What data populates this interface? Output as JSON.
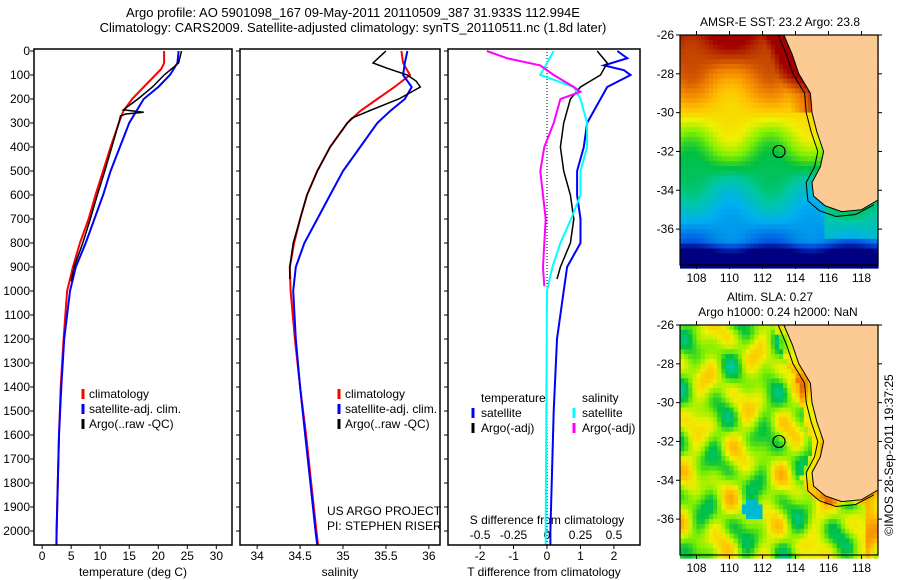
{
  "header": {
    "line1": "Argo profile: AO 5901098_167 09-May-2011 20110509_387 31.933S 112.994E",
    "line2": "Climatology: CARS2009. Satellite-adjusted climatology: synTS_20110511.nc (1.8d later)"
  },
  "depth_axis": {
    "ylim": [
      0,
      2060
    ],
    "ticks": [
      "0",
      "100",
      "200",
      "300",
      "400",
      "500",
      "600",
      "700",
      "800",
      "900",
      "1000",
      "1100",
      "1200",
      "1300",
      "1400",
      "1500",
      "1600",
      "1700",
      "1800",
      "1900",
      "2000"
    ]
  },
  "chart_data": [
    {
      "type": "line",
      "id": "temperature",
      "xlabel": "temperature (deg C)",
      "xlim": [
        -1.4,
        32.7
      ],
      "xticks": [
        "0",
        "5",
        "10",
        "15",
        "20",
        "25",
        "30"
      ],
      "legend": [
        "climatology",
        "satellite-adj. clim.",
        "Argo(..raw -QC)"
      ],
      "series": [
        {
          "name": "climatology",
          "color": "#ff0000",
          "points": [
            [
              0,
              21
            ],
            [
              50,
              21
            ],
            [
              75,
              20.5
            ],
            [
              100,
              19.5
            ],
            [
              150,
              17.5
            ],
            [
              200,
              15.5
            ],
            [
              250,
              14
            ],
            [
              300,
              13.2
            ],
            [
              400,
              11.8
            ],
            [
              500,
              10.5
            ],
            [
              600,
              9.2
            ],
            [
              700,
              8
            ],
            [
              800,
              6.5
            ],
            [
              900,
              5.3
            ],
            [
              1000,
              4.3
            ],
            [
              1200,
              3.7
            ],
            [
              1400,
              3.2
            ],
            [
              1600,
              2.9
            ],
            [
              1800,
              2.7
            ],
            [
              2000,
              2.5
            ],
            [
              2060,
              2.45
            ]
          ]
        },
        {
          "name": "satellite-adj. clim.",
          "color": "#0000ff",
          "points": [
            [
              0,
              23.5
            ],
            [
              50,
              23.3
            ],
            [
              100,
              22
            ],
            [
              150,
              20
            ],
            [
              200,
              17.5
            ],
            [
              300,
              15
            ],
            [
              400,
              13.4
            ],
            [
              500,
              11.8
            ],
            [
              600,
              10.5
            ],
            [
              700,
              9
            ],
            [
              800,
              7.5
            ],
            [
              900,
              5.8
            ],
            [
              1000,
              4.8
            ],
            [
              1200,
              3.8
            ],
            [
              1400,
              3.3
            ],
            [
              1600,
              2.9
            ],
            [
              1800,
              2.7
            ],
            [
              2000,
              2.5
            ],
            [
              2060,
              2.45
            ]
          ]
        },
        {
          "name": "Argo(..raw -QC)",
          "color": "#000000",
          "points": [
            [
              0,
              24
            ],
            [
              50,
              23.5
            ],
            [
              100,
              21
            ],
            [
              150,
              19
            ],
            [
              200,
              16.5
            ],
            [
              245,
              14
            ],
            [
              255,
              17.5
            ],
            [
              262,
              14.5
            ],
            [
              270,
              13.5
            ],
            [
              300,
              13.2
            ],
            [
              400,
              12
            ],
            [
              500,
              10.8
            ],
            [
              600,
              9.5
            ],
            [
              700,
              8.3
            ],
            [
              800,
              7
            ],
            [
              900,
              5.5
            ],
            [
              960,
              5.0
            ]
          ]
        }
      ]
    },
    {
      "type": "line",
      "id": "salinity",
      "xlabel": "salinity",
      "xlim": [
        33.8,
        36.13
      ],
      "xticks": [
        "34",
        "34.5",
        "35",
        "35.5",
        "36"
      ],
      "legend": [
        "climatology",
        "satellite-adj. clim.",
        "Argo(..raw -QC)"
      ],
      "annotation": [
        "US ARGO PROJECT",
        "PI: STEPHEN RISER"
      ],
      "series": [
        {
          "name": "climatology",
          "color": "#ff0000",
          "points": [
            [
              0,
              35.68
            ],
            [
              50,
              35.7
            ],
            [
              100,
              35.78
            ],
            [
              150,
              35.6
            ],
            [
              200,
              35.4
            ],
            [
              250,
              35.2
            ],
            [
              300,
              35.05
            ],
            [
              400,
              34.85
            ],
            [
              500,
              34.7
            ],
            [
              600,
              34.58
            ],
            [
              700,
              34.5
            ],
            [
              800,
              34.43
            ],
            [
              900,
              34.38
            ],
            [
              1000,
              34.39
            ],
            [
              1200,
              34.44
            ],
            [
              1400,
              34.5
            ],
            [
              1600,
              34.57
            ],
            [
              1800,
              34.63
            ],
            [
              2000,
              34.69
            ],
            [
              2060,
              34.71
            ]
          ]
        },
        {
          "name": "satellite-adj. clim.",
          "color": "#0000ff",
          "points": [
            [
              0,
              35.75
            ],
            [
              50,
              35.72
            ],
            [
              100,
              35.7
            ],
            [
              150,
              35.8
            ],
            [
              200,
              35.72
            ],
            [
              250,
              35.55
            ],
            [
              300,
              35.4
            ],
            [
              400,
              35.2
            ],
            [
              500,
              35.0
            ],
            [
              600,
              34.85
            ],
            [
              700,
              34.7
            ],
            [
              800,
              34.55
            ],
            [
              900,
              34.45
            ],
            [
              1000,
              34.42
            ],
            [
              1200,
              34.45
            ],
            [
              1400,
              34.5
            ],
            [
              1600,
              34.56
            ],
            [
              1800,
              34.62
            ],
            [
              2000,
              34.68
            ],
            [
              2060,
              34.7
            ]
          ]
        },
        {
          "name": "Argo(..raw -QC)",
          "color": "#000000",
          "points": [
            [
              0,
              35.5
            ],
            [
              50,
              35.35
            ],
            [
              70,
              35.5
            ],
            [
              100,
              35.75
            ],
            [
              125,
              35.85
            ],
            [
              150,
              35.9
            ],
            [
              200,
              35.65
            ],
            [
              250,
              35.3
            ],
            [
              280,
              35.1
            ],
            [
              300,
              35.05
            ],
            [
              400,
              34.85
            ],
            [
              500,
              34.7
            ],
            [
              600,
              34.58
            ],
            [
              700,
              34.5
            ],
            [
              800,
              34.42
            ],
            [
              900,
              34.38
            ],
            [
              950,
              34.38
            ]
          ]
        }
      ]
    },
    {
      "type": "line",
      "id": "difference",
      "xlabel": "T difference from climatology",
      "xlim": [
        -2.96,
        2.78
      ],
      "xticks": [
        "-2",
        "-1",
        "0",
        "1",
        "2"
      ],
      "s_axis_label": "S difference from climatology",
      "s_ticks": [
        "-0.5",
        "-0.25",
        "0",
        "0.25",
        "0.5"
      ],
      "legend_headers": [
        "temperature",
        "salinity"
      ],
      "legend": [
        "satellite",
        "Argo(-adj)",
        "satellite",
        "Argo(-adj)"
      ],
      "series": [
        {
          "name": "T satellite",
          "color": "#0000ff",
          "units": "T",
          "points": [
            [
              0,
              2.1
            ],
            [
              30,
              2.4
            ],
            [
              60,
              1.7
            ],
            [
              80,
              2.3
            ],
            [
              100,
              2.5
            ],
            [
              150,
              1.8
            ],
            [
              200,
              1.6
            ],
            [
              300,
              1.2
            ],
            [
              400,
              1.1
            ],
            [
              500,
              0.9
            ],
            [
              600,
              0.9
            ],
            [
              700,
              1.0
            ],
            [
              800,
              1.0
            ],
            [
              900,
              0.6
            ],
            [
              1000,
              0.5
            ],
            [
              1200,
              0.3
            ],
            [
              1500,
              0.2
            ],
            [
              2000,
              0.1
            ],
            [
              2060,
              0.1
            ]
          ]
        },
        {
          "name": "T Argo(-adj)",
          "color": "#000000",
          "units": "T",
          "points": [
            [
              0,
              1.5
            ],
            [
              50,
              1.8
            ],
            [
              100,
              1.6
            ],
            [
              150,
              1.0
            ],
            [
              200,
              0.7
            ],
            [
              300,
              0.5
            ],
            [
              400,
              0.4
            ],
            [
              500,
              0.5
            ],
            [
              600,
              0.7
            ],
            [
              700,
              0.8
            ],
            [
              800,
              0.7
            ],
            [
              900,
              0.4
            ],
            [
              950,
              0.3
            ]
          ]
        },
        {
          "name": "S satellite",
          "color": "#00ffff",
          "units": "S",
          "points": [
            [
              0,
              0.05
            ],
            [
              100,
              -0.05
            ],
            [
              150,
              0.2
            ],
            [
              200,
              0.25
            ],
            [
              300,
              0.3
            ],
            [
              400,
              0.3
            ],
            [
              500,
              0.25
            ],
            [
              600,
              0.25
            ],
            [
              700,
              0.18
            ],
            [
              800,
              0.1
            ],
            [
              900,
              0.04
            ],
            [
              1000,
              0.0
            ],
            [
              1500,
              -0.005
            ],
            [
              2000,
              -0.01
            ],
            [
              2060,
              -0.01
            ]
          ]
        },
        {
          "name": "S Argo(-adj)",
          "color": "#ff00ff",
          "units": "S",
          "points": [
            [
              0,
              -0.45
            ],
            [
              30,
              -0.3
            ],
            [
              60,
              -0.05
            ],
            [
              100,
              0.05
            ],
            [
              150,
              0.2
            ],
            [
              170,
              0.25
            ],
            [
              200,
              0.1
            ],
            [
              300,
              0.05
            ],
            [
              400,
              -0.02
            ],
            [
              500,
              -0.05
            ],
            [
              600,
              -0.03
            ],
            [
              700,
              -0.01
            ],
            [
              800,
              -0.02
            ],
            [
              900,
              -0.03
            ],
            [
              980,
              -0.02
            ]
          ]
        }
      ]
    },
    {
      "type": "heatmap",
      "id": "sst-map",
      "title": "AMSR-E SST: 23.2 Argo: 23.8",
      "xlim": [
        107,
        119
      ],
      "ylim": [
        -37.85,
        -26
      ],
      "xticks": [
        "108",
        "110",
        "112",
        "114",
        "116",
        "118"
      ],
      "yticks": [
        "-26",
        "-28",
        "-30",
        "-32",
        "-34",
        "-36"
      ],
      "float_position": [
        113,
        -32
      ],
      "colors": {
        "land": "#fccb94"
      }
    },
    {
      "type": "heatmap",
      "id": "sla-map",
      "title_line1": "Altim. SLA: 0.27",
      "title_line2": "Argo h1000: 0.24 h2000: NaN",
      "xlim": [
        107,
        119
      ],
      "ylim": [
        -37.85,
        -26
      ],
      "xticks": [
        "108",
        "110",
        "112",
        "114",
        "116",
        "118"
      ],
      "yticks": [
        "-26",
        "-28",
        "-30",
        "-32",
        "-34",
        "-36"
      ],
      "float_position": [
        113,
        -32
      ],
      "colors": {
        "land": "#fccb94"
      }
    }
  ],
  "coastline": [
    [
      113.3,
      -25.9
    ],
    [
      113.8,
      -27
    ],
    [
      114.2,
      -28
    ],
    [
      114.9,
      -29
    ],
    [
      115.0,
      -30
    ],
    [
      115.3,
      -31
    ],
    [
      115.7,
      -32
    ],
    [
      115.5,
      -32.8
    ],
    [
      115.0,
      -33.6
    ],
    [
      115.1,
      -34.3
    ],
    [
      115.8,
      -34.8
    ],
    [
      116.8,
      -35.1
    ],
    [
      118,
      -35.0
    ],
    [
      119.1,
      -34.5
    ],
    [
      119.1,
      -25.9
    ]
  ],
  "credit": "©IMOS 28-Sep-2011 19:37:25"
}
